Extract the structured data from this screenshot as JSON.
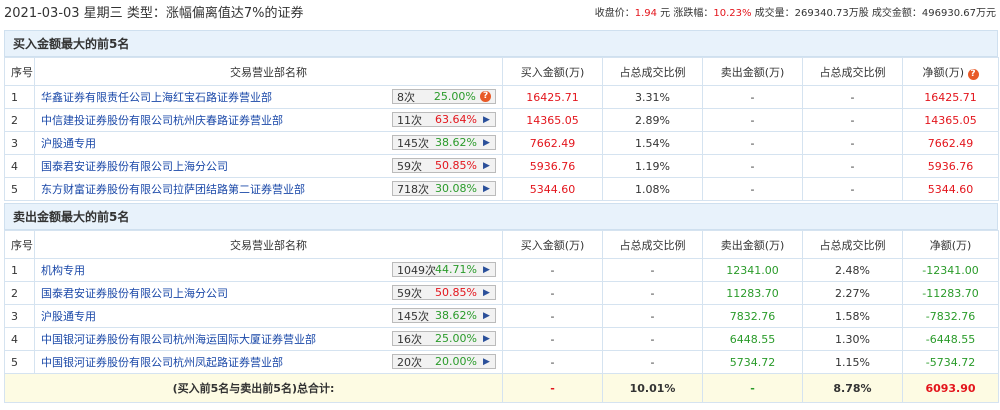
{
  "header": {
    "title": "2021-03-03 星期三  类型：涨幅偏离值达7%的证券",
    "close_label": "收盘价：",
    "close": "1.94",
    "close_unit": " 元  ",
    "change_label": "涨跌幅：",
    "change": "10.23%",
    "volume": "  成交量：269340.73万股  ",
    "amount": "成交金额：496930.67万元"
  },
  "columns": [
    "序号",
    "交易营业部名称",
    "买入金额(万)",
    "占总成交比例",
    "卖出金额(万)",
    "占总成交比例",
    "净额(万)"
  ],
  "buy": {
    "title": "买入金额最大的前5名",
    "rows": [
      {
        "idx": "1",
        "name": "华鑫证券有限责任公司上海红宝石路证券营业部",
        "times": "8次",
        "rate": "25.00%",
        "rate_color": "green",
        "icon": "question",
        "buy": "16425.71",
        "buy_pct": "3.31%",
        "sell": "-",
        "sell_pct": "-",
        "net": "16425.71"
      },
      {
        "idx": "2",
        "name": "中信建投证券股份有限公司杭州庆春路证券营业部",
        "times": "11次",
        "rate": "63.64%",
        "rate_color": "red",
        "icon": "arrow",
        "buy": "14365.05",
        "buy_pct": "2.89%",
        "sell": "-",
        "sell_pct": "-",
        "net": "14365.05"
      },
      {
        "idx": "3",
        "name": "沪股通专用",
        "times": "145次",
        "rate": "38.62%",
        "rate_color": "green",
        "icon": "arrow",
        "buy": "7662.49",
        "buy_pct": "1.54%",
        "sell": "-",
        "sell_pct": "-",
        "net": "7662.49"
      },
      {
        "idx": "4",
        "name": "国泰君安证券股份有限公司上海分公司",
        "times": "59次",
        "rate": "50.85%",
        "rate_color": "red",
        "icon": "arrow",
        "buy": "5936.76",
        "buy_pct": "1.19%",
        "sell": "-",
        "sell_pct": "-",
        "net": "5936.76"
      },
      {
        "idx": "5",
        "name": "东方财富证券股份有限公司拉萨团结路第二证券营业部",
        "times": "718次",
        "rate": "30.08%",
        "rate_color": "green",
        "icon": "arrow",
        "buy": "5344.60",
        "buy_pct": "1.08%",
        "sell": "-",
        "sell_pct": "-",
        "net": "5344.60"
      }
    ]
  },
  "sell": {
    "title": "卖出金额最大的前5名",
    "rows": [
      {
        "idx": "1",
        "name": "机构专用",
        "times": "1049次",
        "rate": "44.71%",
        "rate_color": "green",
        "icon": "arrow",
        "buy": "-",
        "buy_pct": "-",
        "sell": "12341.00",
        "sell_pct": "2.48%",
        "net": "-12341.00"
      },
      {
        "idx": "2",
        "name": "国泰君安证券股份有限公司上海分公司",
        "times": "59次",
        "rate": "50.85%",
        "rate_color": "red",
        "icon": "arrow",
        "buy": "-",
        "buy_pct": "-",
        "sell": "11283.70",
        "sell_pct": "2.27%",
        "net": "-11283.70"
      },
      {
        "idx": "3",
        "name": "沪股通专用",
        "times": "145次",
        "rate": "38.62%",
        "rate_color": "green",
        "icon": "arrow",
        "buy": "-",
        "buy_pct": "-",
        "sell": "7832.76",
        "sell_pct": "1.58%",
        "net": "-7832.76"
      },
      {
        "idx": "4",
        "name": "中国银河证券股份有限公司杭州海运国际大厦证券营业部",
        "times": "16次",
        "rate": "25.00%",
        "rate_color": "green",
        "icon": "arrow",
        "buy": "-",
        "buy_pct": "-",
        "sell": "6448.55",
        "sell_pct": "1.30%",
        "net": "-6448.55"
      },
      {
        "idx": "5",
        "name": "中国银河证券股份有限公司杭州凤起路证券营业部",
        "times": "20次",
        "rate": "20.00%",
        "rate_color": "green",
        "icon": "arrow",
        "buy": "-",
        "buy_pct": "-",
        "sell": "5734.72",
        "sell_pct": "1.15%",
        "net": "-5734.72"
      }
    ]
  },
  "total": {
    "label": "(买入前5名与卖出前5名)总合计:",
    "buy": "-",
    "buy_pct": "10.01%",
    "sell": "-",
    "sell_pct": "8.78%",
    "net": "6093.90"
  },
  "colors": {
    "up": "#e3151c",
    "down": "#2a9b2a",
    "link": "#1a48a8",
    "section_bg": "#e8f2fb",
    "total_bg": "#fdfbe3"
  }
}
